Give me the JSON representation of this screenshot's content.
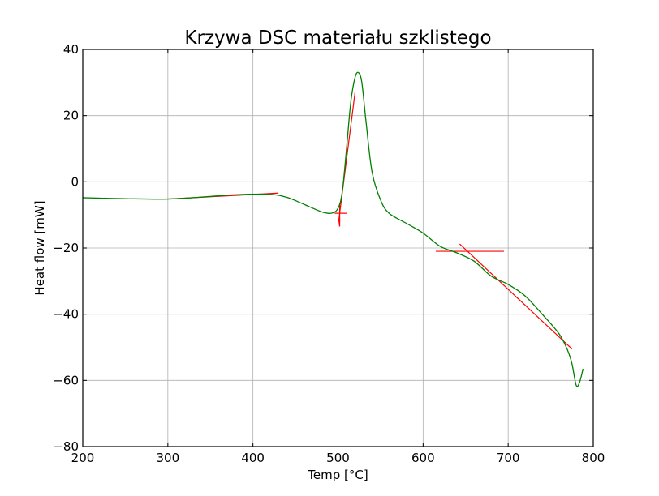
{
  "chart_data": {
    "type": "line",
    "title": "Krzywa DSC materiału szklistego",
    "xlabel": "Temp [°C]",
    "ylabel": "Heat flow [mW]",
    "xlim": [
      200,
      800
    ],
    "ylim": [
      -80,
      40
    ],
    "xticks": [
      200,
      300,
      400,
      500,
      600,
      700,
      800
    ],
    "yticks": [
      -80,
      -60,
      -40,
      -20,
      0,
      20,
      40
    ],
    "xtick_labels": [
      "200",
      "300",
      "400",
      "500",
      "600",
      "700",
      "800"
    ],
    "ytick_labels": [
      "−80",
      "−60",
      "−40",
      "−20",
      "0",
      "20",
      "40"
    ],
    "grid": true,
    "legend": false,
    "series": [
      {
        "color": "#008000",
        "x": [
          200,
          250,
          300,
          340,
          380,
          420,
          440,
          460,
          480,
          492,
          500,
          505,
          510,
          515,
          520,
          524,
          528,
          533,
          540,
          550,
          560,
          580,
          600,
          620,
          640,
          660,
          680,
          700,
          720,
          740,
          760,
          770,
          775,
          780,
          784,
          788
        ],
        "y": [
          -4.8,
          -5.1,
          -5.2,
          -4.6,
          -3.9,
          -3.8,
          -4.7,
          -6.8,
          -9.0,
          -9.5,
          -8.0,
          -3.0,
          10.0,
          24.0,
          31.5,
          33.0,
          30.0,
          18.0,
          3.0,
          -5.5,
          -9.5,
          -12.5,
          -15.5,
          -19.5,
          -21.5,
          -24.0,
          -28.5,
          -31.0,
          -34.5,
          -40.0,
          -46.0,
          -51.0,
          -55.0,
          -61.5,
          -60.5,
          -56.5
        ]
      },
      {
        "color": "#ff0000",
        "segments": [
          {
            "x": [
              300,
              430
            ],
            "y": [
              -5.2,
              -3.4
            ]
          },
          {
            "x": [
              496,
              510
            ],
            "y": [
              -9.5,
              -9.5
            ]
          },
          {
            "x": [
              502,
              502
            ],
            "y": [
              -13.5,
              -7.0
            ]
          },
          {
            "x": [
              500,
              520
            ],
            "y": [
              -13.5,
              27.0
            ]
          },
          {
            "x": [
              615,
              695
            ],
            "y": [
              -21.0,
              -21.0
            ]
          },
          {
            "x": [
              643,
              775
            ],
            "y": [
              -18.8,
              -50.5
            ]
          }
        ]
      }
    ]
  }
}
